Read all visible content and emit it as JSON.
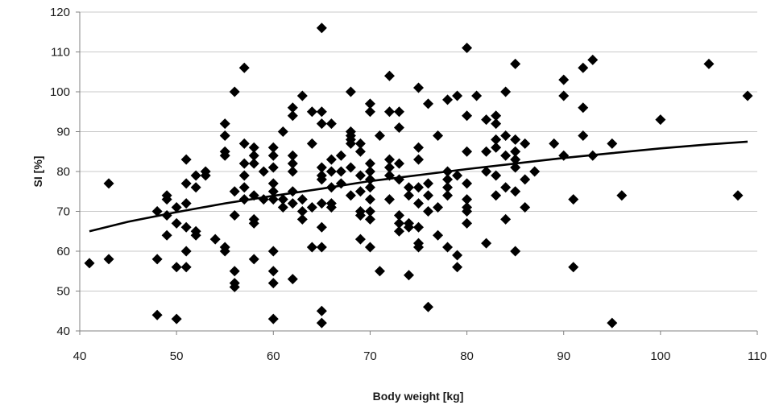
{
  "chart_data": {
    "type": "scatter",
    "xlabel": "Body weight [kg]",
    "ylabel": "SI [%]",
    "xlim": [
      40,
      110
    ],
    "ylim": [
      40,
      120
    ],
    "x_ticks": [
      40,
      50,
      60,
      70,
      80,
      90,
      100,
      110
    ],
    "y_ticks": [
      40,
      50,
      60,
      70,
      80,
      90,
      100,
      110,
      120
    ],
    "grid": "horizontal",
    "legend": "none",
    "marker": "diamond",
    "marker_color": "#000000",
    "points": [
      [
        41,
        57
      ],
      [
        43,
        77
      ],
      [
        43,
        58
      ],
      [
        48,
        70
      ],
      [
        48,
        58
      ],
      [
        48,
        44
      ],
      [
        49,
        73
      ],
      [
        49,
        74
      ],
      [
        49,
        69
      ],
      [
        49,
        64
      ],
      [
        50,
        71
      ],
      [
        50,
        67
      ],
      [
        50,
        56
      ],
      [
        50,
        43
      ],
      [
        51,
        83
      ],
      [
        51,
        77
      ],
      [
        51,
        72
      ],
      [
        51,
        66
      ],
      [
        51,
        60
      ],
      [
        51,
        56
      ],
      [
        52,
        79
      ],
      [
        52,
        76
      ],
      [
        52,
        65
      ],
      [
        52,
        64
      ],
      [
        53,
        80
      ],
      [
        53,
        79
      ],
      [
        54,
        63
      ],
      [
        55,
        92
      ],
      [
        55,
        89
      ],
      [
        55,
        85
      ],
      [
        55,
        84
      ],
      [
        55,
        61
      ],
      [
        55,
        60
      ],
      [
        56,
        100
      ],
      [
        56,
        75
      ],
      [
        56,
        69
      ],
      [
        56,
        55
      ],
      [
        56,
        52
      ],
      [
        56,
        51
      ],
      [
        57,
        106
      ],
      [
        57,
        87
      ],
      [
        57,
        82
      ],
      [
        57,
        79
      ],
      [
        57,
        76
      ],
      [
        57,
        73
      ],
      [
        58,
        86
      ],
      [
        58,
        84
      ],
      [
        58,
        82
      ],
      [
        58,
        74
      ],
      [
        58,
        68
      ],
      [
        58,
        67
      ],
      [
        58,
        58
      ],
      [
        59,
        80
      ],
      [
        59,
        73
      ],
      [
        60,
        86
      ],
      [
        60,
        84
      ],
      [
        60,
        81
      ],
      [
        60,
        77
      ],
      [
        60,
        75
      ],
      [
        60,
        73
      ],
      [
        60,
        60
      ],
      [
        60,
        55
      ],
      [
        60,
        52
      ],
      [
        60,
        43
      ],
      [
        61,
        90
      ],
      [
        61,
        73
      ],
      [
        61,
        71
      ],
      [
        62,
        96
      ],
      [
        62,
        94
      ],
      [
        62,
        84
      ],
      [
        62,
        82
      ],
      [
        62,
        80
      ],
      [
        62,
        75
      ],
      [
        62,
        72
      ],
      [
        62,
        53
      ],
      [
        63,
        99
      ],
      [
        63,
        73
      ],
      [
        63,
        70
      ],
      [
        63,
        68
      ],
      [
        64,
        95
      ],
      [
        64,
        87
      ],
      [
        64,
        71
      ],
      [
        64,
        61
      ],
      [
        65,
        116
      ],
      [
        65,
        95
      ],
      [
        65,
        92
      ],
      [
        65,
        81
      ],
      [
        65,
        79
      ],
      [
        65,
        78
      ],
      [
        65,
        72
      ],
      [
        65,
        66
      ],
      [
        65,
        61
      ],
      [
        65,
        45
      ],
      [
        65,
        42
      ],
      [
        66,
        92
      ],
      [
        66,
        83
      ],
      [
        66,
        80
      ],
      [
        66,
        76
      ],
      [
        66,
        72
      ],
      [
        66,
        71
      ],
      [
        67,
        84
      ],
      [
        67,
        80
      ],
      [
        67,
        77
      ],
      [
        68,
        100
      ],
      [
        68,
        90
      ],
      [
        68,
        89
      ],
      [
        68,
        88
      ],
      [
        68,
        87
      ],
      [
        68,
        81
      ],
      [
        68,
        74
      ],
      [
        69,
        87
      ],
      [
        69,
        85
      ],
      [
        69,
        79
      ],
      [
        69,
        75
      ],
      [
        69,
        70
      ],
      [
        69,
        69
      ],
      [
        69,
        63
      ],
      [
        70,
        97
      ],
      [
        70,
        95
      ],
      [
        70,
        82
      ],
      [
        70,
        80
      ],
      [
        70,
        78
      ],
      [
        70,
        76
      ],
      [
        70,
        73
      ],
      [
        70,
        70
      ],
      [
        70,
        68
      ],
      [
        70,
        61
      ],
      [
        71,
        89
      ],
      [
        71,
        55
      ],
      [
        72,
        104
      ],
      [
        72,
        95
      ],
      [
        72,
        83
      ],
      [
        72,
        81
      ],
      [
        72,
        79
      ],
      [
        72,
        73
      ],
      [
        73,
        95
      ],
      [
        73,
        91
      ],
      [
        73,
        82
      ],
      [
        73,
        78
      ],
      [
        73,
        69
      ],
      [
        73,
        67
      ],
      [
        73,
        65
      ],
      [
        74,
        76
      ],
      [
        74,
        74
      ],
      [
        74,
        67
      ],
      [
        74,
        66
      ],
      [
        74,
        54
      ],
      [
        75,
        101
      ],
      [
        75,
        86
      ],
      [
        75,
        83
      ],
      [
        75,
        76
      ],
      [
        75,
        72
      ],
      [
        75,
        66
      ],
      [
        75,
        62
      ],
      [
        75,
        61
      ],
      [
        76,
        97
      ],
      [
        76,
        77
      ],
      [
        76,
        74
      ],
      [
        76,
        70
      ],
      [
        76,
        46
      ],
      [
        77,
        89
      ],
      [
        77,
        71
      ],
      [
        77,
        64
      ],
      [
        78,
        98
      ],
      [
        78,
        80
      ],
      [
        78,
        78
      ],
      [
        78,
        76
      ],
      [
        78,
        74
      ],
      [
        78,
        61
      ],
      [
        79,
        99
      ],
      [
        79,
        79
      ],
      [
        79,
        59
      ],
      [
        79,
        56
      ],
      [
        80,
        111
      ],
      [
        80,
        94
      ],
      [
        80,
        85
      ],
      [
        80,
        77
      ],
      [
        80,
        73
      ],
      [
        80,
        71
      ],
      [
        80,
        70
      ],
      [
        80,
        67
      ],
      [
        81,
        99
      ],
      [
        82,
        93
      ],
      [
        82,
        85
      ],
      [
        82,
        80
      ],
      [
        82,
        62
      ],
      [
        83,
        94
      ],
      [
        83,
        92
      ],
      [
        83,
        88
      ],
      [
        83,
        86
      ],
      [
        83,
        79
      ],
      [
        83,
        74
      ],
      [
        84,
        100
      ],
      [
        84,
        89
      ],
      [
        84,
        84
      ],
      [
        84,
        76
      ],
      [
        84,
        68
      ],
      [
        85,
        107
      ],
      [
        85,
        88
      ],
      [
        85,
        85
      ],
      [
        85,
        83
      ],
      [
        85,
        81
      ],
      [
        85,
        75
      ],
      [
        85,
        60
      ],
      [
        86,
        87
      ],
      [
        86,
        78
      ],
      [
        86,
        71
      ],
      [
        87,
        80
      ],
      [
        89,
        87
      ],
      [
        90,
        103
      ],
      [
        90,
        99
      ],
      [
        90,
        84
      ],
      [
        91,
        73
      ],
      [
        91,
        56
      ],
      [
        92,
        106
      ],
      [
        92,
        96
      ],
      [
        92,
        89
      ],
      [
        93,
        108
      ],
      [
        93,
        84
      ],
      [
        95,
        87
      ],
      [
        95,
        42
      ],
      [
        96,
        74
      ],
      [
        100,
        93
      ],
      [
        105,
        107
      ],
      [
        108,
        74
      ],
      [
        109,
        99
      ]
    ],
    "trendline": {
      "type": "logarithmic",
      "points": [
        [
          41,
          65
        ],
        [
          45,
          67.4
        ],
        [
          50,
          69.8
        ],
        [
          55,
          72
        ],
        [
          60,
          73.9
        ],
        [
          65,
          75.7
        ],
        [
          70,
          77.6
        ],
        [
          75,
          79.1
        ],
        [
          80,
          80.6
        ],
        [
          85,
          82
        ],
        [
          90,
          83.4
        ],
        [
          95,
          84.6
        ],
        [
          100,
          85.8
        ],
        [
          105,
          86.8
        ],
        [
          109,
          87.5
        ]
      ]
    }
  }
}
